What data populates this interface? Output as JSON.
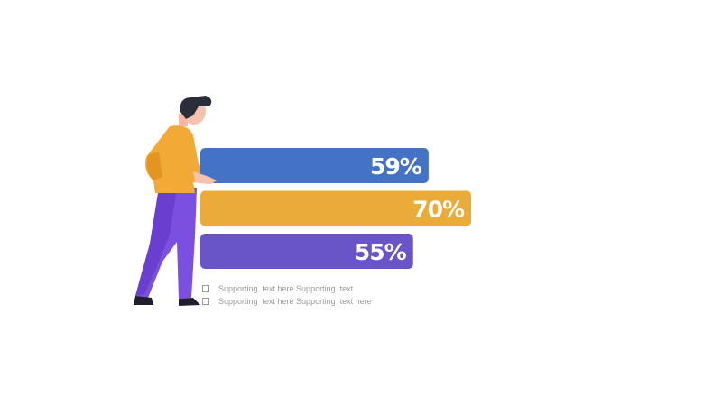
{
  "chart_data": {
    "type": "bar",
    "orientation": "horizontal",
    "values": [
      59,
      70,
      55
    ],
    "value_labels": [
      "59%",
      "70%",
      "55%"
    ],
    "colors": [
      "#4472c4",
      "#eaab38",
      "#6a55c8"
    ],
    "annotations": [
      "Supporting  text here Supporting  text",
      "Supporting  text here Supporting  text here"
    ]
  }
}
